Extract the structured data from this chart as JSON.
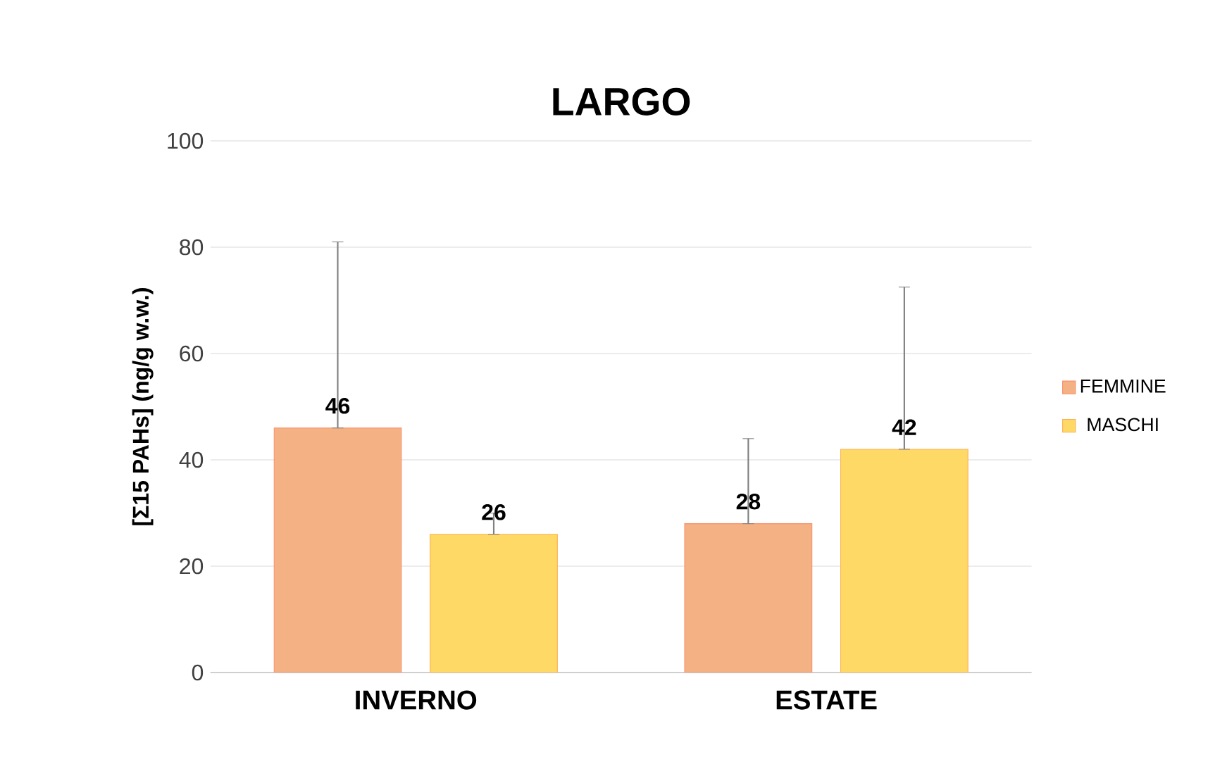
{
  "chart_data": {
    "type": "bar",
    "title": "LARGO",
    "ylabel": "[Σ15 PAHs] (ng/g w.w.)",
    "categories": [
      "INVERNO",
      "ESTATE"
    ],
    "series": [
      {
        "name": "FEMMINE",
        "color": "#f4b183",
        "values": [
          46,
          28
        ],
        "errors": [
          [
            46,
            81
          ],
          [
            28,
            44
          ]
        ]
      },
      {
        "name": "MASCHI",
        "color": "#ffd966",
        "values": [
          26,
          42
        ],
        "errors": [
          [
            26,
            30
          ],
          [
            42,
            72.5
          ]
        ]
      }
    ],
    "ylim": [
      0,
      100
    ],
    "yticks": [
      0,
      20,
      40,
      60,
      80,
      100
    ],
    "grid": "y",
    "legend": "right",
    "data_labels": true
  }
}
